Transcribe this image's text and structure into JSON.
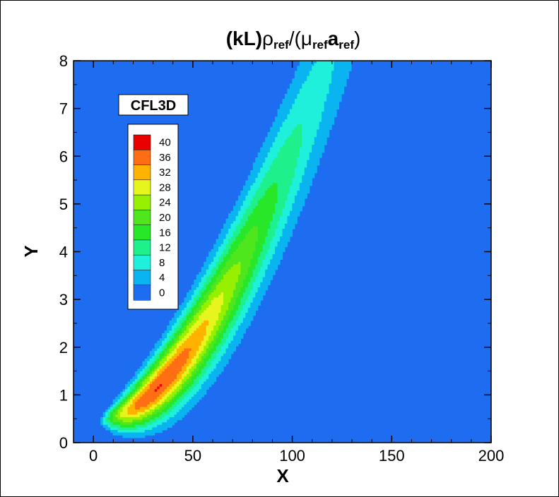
{
  "chart_data": {
    "type": "heatmap",
    "title": {
      "segments": [
        {
          "text": "(kL)",
          "style": "bold"
        },
        {
          "text": "ρ",
          "style": "normal"
        },
        {
          "text": "ref",
          "style": "sub"
        },
        {
          "text": "/(",
          "style": "normal"
        },
        {
          "text": "μ",
          "style": "normal"
        },
        {
          "text": "ref",
          "style": "sub"
        },
        {
          "text": "a",
          "style": "bold"
        },
        {
          "text": "ref",
          "style": "sub"
        },
        {
          "text": ")",
          "style": "normal"
        }
      ]
    },
    "xlabel": "X",
    "ylabel": "Y",
    "xlim": [
      -10,
      200
    ],
    "ylim": [
      0,
      8
    ],
    "xticks": [
      0,
      50,
      100,
      150,
      200
    ],
    "yticks": [
      0,
      1,
      2,
      3,
      4,
      5,
      6,
      7,
      8
    ],
    "legend": {
      "title": "CFL3D",
      "placement": "top-left",
      "levels": [
        0,
        4,
        8,
        12,
        16,
        20,
        24,
        28,
        32,
        36,
        40
      ],
      "level_labels": [
        "0",
        "4",
        "8",
        "12",
        "16",
        "20",
        "24",
        "28",
        "32",
        "36",
        "40"
      ]
    },
    "level_colors": [
      "#0000e8",
      "#1e6df0",
      "#0ab4f0",
      "#1ef0dc",
      "#1ef08c",
      "#28e628",
      "#50e61e",
      "#96f000",
      "#e6f51e",
      "#ffb300",
      "#ff6e14",
      "#eb0000"
    ],
    "field": {
      "origin": [
        2,
        0.45
      ],
      "peak": {
        "x": 33,
        "y": 0.78,
        "value": 40.5
      }
    }
  }
}
